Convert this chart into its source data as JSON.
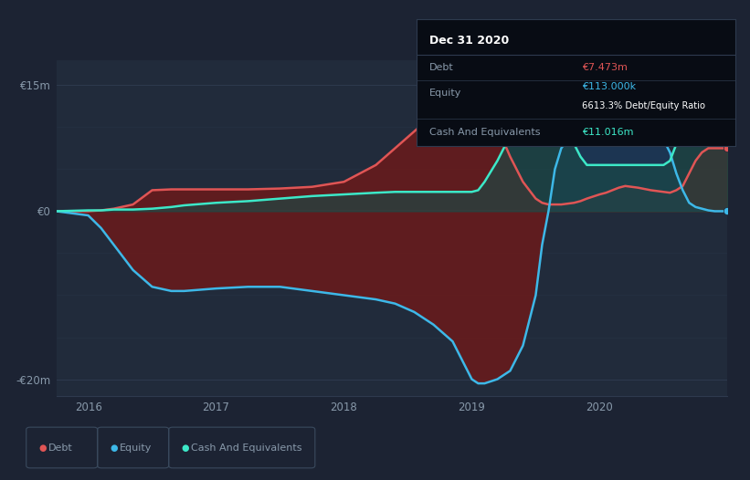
{
  "bg_color": "#1c2333",
  "plot_bg_color": "#212b3b",
  "grid_color": "#2e3a4e",
  "tooltip": {
    "date": "Dec 31 2020",
    "debt_label": "Debt",
    "debt_value": "€7.473m",
    "equity_label": "Equity",
    "equity_value": "€113.000k",
    "ratio_text": "6613.3% Debt/Equity Ratio",
    "cash_label": "Cash And Equivalents",
    "cash_value": "€11.016m"
  },
  "ylim": [
    -22,
    18
  ],
  "debt_color": "#e05555",
  "equity_color": "#3db8e8",
  "cash_color": "#3de8c8",
  "debt_fill": "#6b1a1a",
  "equity_fill_neg": "#6b1a1a",
  "equity_fill_pos": "#1a3a5c",
  "cash_fill": "#1a4a47",
  "legend_items": [
    {
      "label": "Debt",
      "color": "#e05555"
    },
    {
      "label": "Equity",
      "color": "#3db8e8"
    },
    {
      "label": "Cash And Equivalents",
      "color": "#3de8c8"
    }
  ],
  "x_data": [
    2015.75,
    2016.0,
    2016.1,
    2016.2,
    2016.35,
    2016.5,
    2016.65,
    2016.75,
    2017.0,
    2017.25,
    2017.5,
    2017.75,
    2018.0,
    2018.25,
    2018.4,
    2018.55,
    2018.7,
    2018.85,
    2019.0,
    2019.05,
    2019.1,
    2019.2,
    2019.3,
    2019.4,
    2019.5,
    2019.55,
    2019.6,
    2019.65,
    2019.7,
    2019.75,
    2019.8,
    2019.85,
    2019.9,
    2020.0,
    2020.05,
    2020.1,
    2020.15,
    2020.2,
    2020.3,
    2020.4,
    2020.5,
    2020.55,
    2020.6,
    2020.65,
    2020.7,
    2020.75,
    2020.8,
    2020.85,
    2020.9,
    2021.0
  ],
  "debt_y": [
    0.0,
    0.0,
    0.1,
    0.3,
    0.8,
    2.5,
    2.6,
    2.6,
    2.6,
    2.6,
    2.7,
    2.9,
    3.5,
    5.5,
    7.5,
    9.5,
    11.5,
    13.0,
    13.5,
    13.2,
    12.5,
    10.0,
    6.5,
    3.5,
    1.5,
    1.0,
    0.8,
    0.8,
    0.8,
    0.9,
    1.0,
    1.2,
    1.5,
    2.0,
    2.2,
    2.5,
    2.8,
    3.0,
    2.8,
    2.5,
    2.3,
    2.2,
    2.5,
    3.0,
    4.5,
    6.0,
    7.0,
    7.5,
    7.5,
    7.5
  ],
  "equity_y": [
    0.0,
    -0.5,
    -2.0,
    -4.0,
    -7.0,
    -9.0,
    -9.5,
    -9.5,
    -9.2,
    -9.0,
    -9.0,
    -9.5,
    -10.0,
    -10.5,
    -11.0,
    -12.0,
    -13.5,
    -15.5,
    -20.0,
    -20.5,
    -20.5,
    -20.0,
    -19.0,
    -16.0,
    -10.0,
    -4.0,
    0.0,
    5.0,
    7.5,
    8.5,
    8.5,
    8.5,
    8.5,
    8.5,
    8.5,
    8.5,
    8.5,
    8.5,
    8.5,
    8.5,
    8.5,
    7.0,
    4.5,
    2.5,
    1.0,
    0.5,
    0.3,
    0.1,
    0.0,
    0.0
  ],
  "cash_y": [
    0.0,
    0.1,
    0.1,
    0.2,
    0.2,
    0.3,
    0.5,
    0.7,
    1.0,
    1.2,
    1.5,
    1.8,
    2.0,
    2.2,
    2.3,
    2.3,
    2.3,
    2.3,
    2.3,
    2.5,
    3.5,
    6.0,
    9.0,
    11.5,
    12.5,
    12.5,
    12.5,
    12.0,
    11.0,
    9.5,
    8.0,
    6.5,
    5.5,
    5.5,
    5.5,
    5.5,
    5.5,
    5.5,
    5.5,
    5.5,
    5.5,
    6.0,
    8.0,
    10.5,
    13.0,
    14.5,
    14.5,
    14.5,
    14.5,
    11.0
  ]
}
